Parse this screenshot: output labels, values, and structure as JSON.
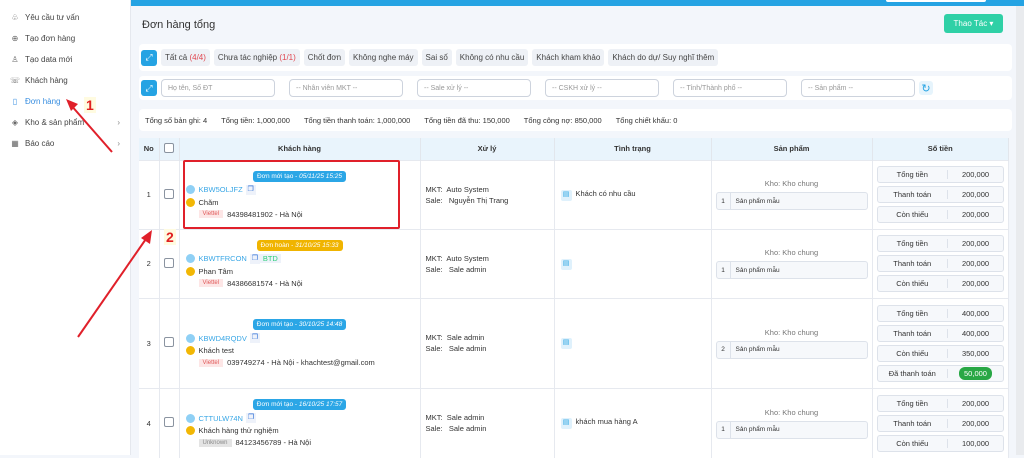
{
  "sidebar": {
    "items": [
      {
        "label": "Yêu cầu tư vấn",
        "icon": "bell-icon"
      },
      {
        "label": "Tạo đơn hàng",
        "icon": "plus-circle-icon"
      },
      {
        "label": "Tạo data mới",
        "icon": "user-icon"
      },
      {
        "label": "Khách hàng",
        "icon": "phone-icon"
      },
      {
        "label": "Đơn hàng",
        "icon": "tablet-icon",
        "active": true
      },
      {
        "label": "Kho & sản phẩm",
        "icon": "box-icon"
      },
      {
        "label": "Báo cáo",
        "icon": "report-icon"
      }
    ]
  },
  "header": {
    "title": "Đơn hàng tổng",
    "action_label": "Thao Tác ▾"
  },
  "tabs": [
    {
      "label": "Tất cả",
      "count": "(4/4)"
    },
    {
      "label": "Chưa tác nghiệp",
      "count": "(1/1)"
    },
    {
      "label": "Chốt đơn"
    },
    {
      "label": "Không nghe máy"
    },
    {
      "label": "Sai số"
    },
    {
      "label": "Không có nhu cầu"
    },
    {
      "label": "Khách kham khảo"
    },
    {
      "label": "Khách do dự/ Suy nghĩ thêm"
    }
  ],
  "filters": {
    "name_placeholder": "Họ tên, Số ĐT",
    "mkt": "-- Nhân viên MKT --",
    "sale": "-- Sale xử lý --",
    "cskh": "-- CSKH xử lý --",
    "city": "-- Tỉnh/Thành phố --",
    "product": "-- Sản phẩm --"
  },
  "summary": [
    "Tổng số bản ghi: 4",
    "Tổng tiền: 1,000,000",
    "Tổng tiền thanh toán: 1,000,000",
    "Tổng tiền đã thu: 150,000",
    "Tổng công nợ: 850,000",
    "Tổng chiết khấu: 0"
  ],
  "table": {
    "headers": [
      "No",
      "",
      "Khách hàng",
      "Xử lý",
      "Tình trạng",
      "Sản phẩm",
      "Số tiền"
    ],
    "rows": [
      {
        "no": "1",
        "badge": "Đơn mới tạo - ",
        "date": "05/11/25 15:25",
        "badge_color": "#2ba6e6",
        "code": "KBW5OLJFZ",
        "tag": "",
        "name": "Chăm",
        "carrier": "Viettel",
        "contact": "84398481902 - Hà Nội",
        "mkt": "Auto System",
        "sale": "Nguyễn Thị Trang",
        "status": "Khách có nhu cầu",
        "kho": "Kho: Kho chung",
        "qty": "1",
        "product": "Sản phẩm mẫu",
        "money": [
          [
            "Tổng tiền",
            "200,000"
          ],
          [
            "Thanh toán",
            "200,000"
          ],
          [
            "Còn thiếu",
            "200,000"
          ]
        ]
      },
      {
        "no": "2",
        "badge": "Đơn hoàn - ",
        "date": "31/10/25 15:33",
        "badge_color": "#f0b400",
        "code": "KBWTFRCON",
        "tag": "BTD",
        "name": "Phan Tâm",
        "carrier": "Viettel",
        "contact": "84386681574 - Hà Nội",
        "mkt": "Auto System",
        "sale": "Sale admin",
        "status": "",
        "kho": "Kho: Kho chung",
        "qty": "1",
        "product": "Sản phẩm mẫu",
        "money": [
          [
            "Tổng tiền",
            "200,000"
          ],
          [
            "Thanh toán",
            "200,000"
          ],
          [
            "Còn thiếu",
            "200,000"
          ]
        ]
      },
      {
        "no": "3",
        "badge": "Đơn mới tạo - ",
        "date": "30/10/25 14:48",
        "badge_color": "#2ba6e6",
        "code": "KBWD4RQDV",
        "tag": "",
        "name": "Khách test",
        "carrier": "Viettel",
        "contact": "039749274 - Hà Nội - khachtest@gmail.com",
        "mkt": "Sale admin",
        "sale": "Sale admin",
        "status": "",
        "kho": "Kho: Kho chung",
        "qty": "2",
        "product": "Sản phẩm mẫu",
        "money": [
          [
            "Tổng tiền",
            "400,000"
          ],
          [
            "Thanh toán",
            "400,000"
          ],
          [
            "Còn thiếu",
            "350,000"
          ]
        ],
        "paid_label": "Đã thanh toán",
        "paid": "50,000"
      },
      {
        "no": "4",
        "badge": "Đơn mới tạo - ",
        "date": "16/10/25 17:57",
        "badge_color": "#2ba6e6",
        "code": "CTTULW74N",
        "tag": "",
        "name": "Khách hàng thử nghiệm",
        "carrier": "Unknown",
        "contact": "84123456789 - Hà Nội",
        "mkt": "Sale admin",
        "sale": "Sale admin",
        "status": "khách mua hàng A",
        "kho": "Kho: Kho chung",
        "qty": "1",
        "product": "Sản phẩm mẫu",
        "money": [
          [
            "Tổng tiền",
            "200,000"
          ],
          [
            "Thanh toán",
            "200,000"
          ],
          [
            "Còn thiếu",
            "100,000"
          ]
        ]
      }
    ]
  },
  "labels": {
    "mkt": "MKT:",
    "sale": "Sale:"
  },
  "annotations": {
    "one": "1",
    "two": "2",
    "color": "#e0202a"
  }
}
